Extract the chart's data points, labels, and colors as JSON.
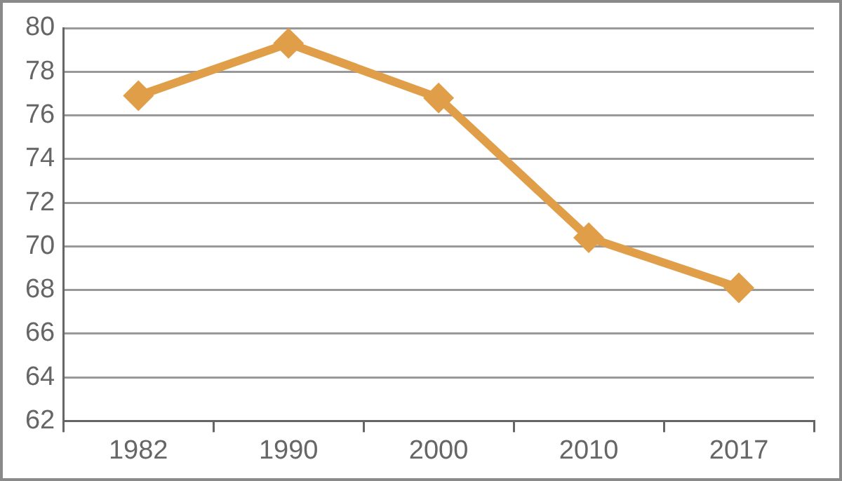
{
  "chart_data": {
    "type": "line",
    "categories": [
      "1982",
      "1990",
      "2000",
      "2010",
      "2017"
    ],
    "series": [
      {
        "color": "#e09e48",
        "values": [
          76.9,
          79.3,
          76.8,
          70.4,
          68.1
        ]
      }
    ],
    "ylim": [
      62,
      80
    ],
    "yticks": [
      62,
      64,
      66,
      68,
      70,
      72,
      74,
      76,
      78,
      80
    ],
    "grid": "y",
    "marker": "diamond",
    "line_style": "solid",
    "legend": false
  }
}
